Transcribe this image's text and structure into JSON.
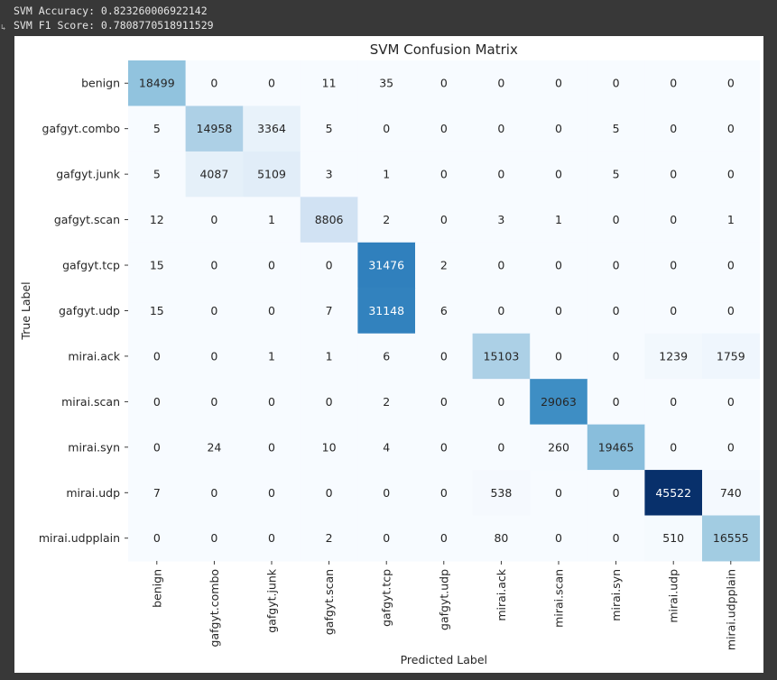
{
  "console": {
    "lines": [
      "SVM Accuracy: 0.823260006922142",
      "SVM F1 Score: 0.7808770518911529"
    ],
    "arrow_icon": "collapse-arrow"
  },
  "chart_data": {
    "type": "heatmap",
    "title": "SVM Confusion Matrix",
    "xlabel": "Predicted Label",
    "ylabel": "True Label",
    "labels": [
      "benign",
      "gafgyt.combo",
      "gafgyt.junk",
      "gafgyt.scan",
      "gafgyt.tcp",
      "gafgyt.udp",
      "mirai.ack",
      "mirai.scan",
      "mirai.syn",
      "mirai.udp",
      "mirai.udpplain"
    ],
    "values": [
      [
        18499,
        0,
        0,
        11,
        35,
        0,
        0,
        0,
        0,
        0,
        0
      ],
      [
        5,
        14958,
        3364,
        5,
        0,
        0,
        0,
        0,
        5,
        0,
        0
      ],
      [
        5,
        4087,
        5109,
        3,
        1,
        0,
        0,
        0,
        5,
        0,
        0
      ],
      [
        12,
        0,
        1,
        8806,
        2,
        0,
        3,
        1,
        0,
        0,
        1
      ],
      [
        15,
        0,
        0,
        0,
        31476,
        2,
        0,
        0,
        0,
        0,
        0
      ],
      [
        15,
        0,
        0,
        7,
        31148,
        6,
        0,
        0,
        0,
        0,
        0
      ],
      [
        0,
        0,
        1,
        1,
        6,
        0,
        15103,
        0,
        0,
        1239,
        1759
      ],
      [
        0,
        0,
        0,
        0,
        2,
        0,
        0,
        29063,
        0,
        0,
        0
      ],
      [
        0,
        24,
        0,
        10,
        4,
        0,
        0,
        260,
        19465,
        0,
        0
      ],
      [
        7,
        0,
        0,
        0,
        0,
        0,
        538,
        0,
        0,
        45522,
        740
      ],
      [
        0,
        0,
        0,
        2,
        0,
        0,
        80,
        0,
        0,
        510,
        16555
      ]
    ],
    "colormap": "Blues",
    "colorbar": false,
    "annotated": true,
    "grid": false
  }
}
